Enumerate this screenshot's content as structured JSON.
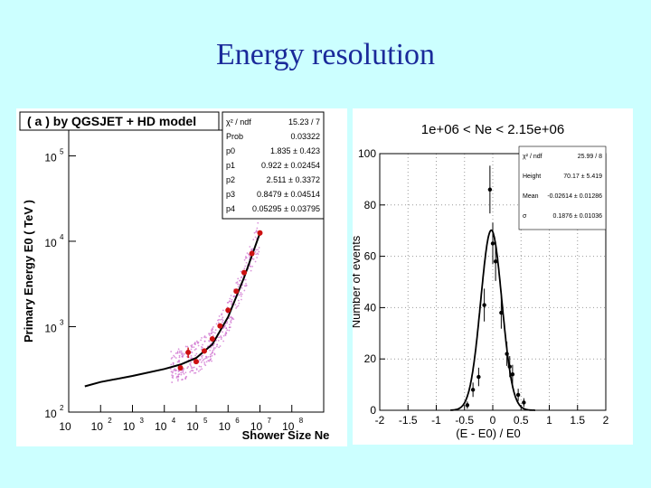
{
  "slide": {
    "title": "Energy resolution"
  },
  "chart_data": [
    {
      "type": "scatter",
      "title": "( a ) by QGSJET + HD model",
      "xlabel": "Shower Size Ne",
      "ylabel": "Primary Energy E0  ( TeV )",
      "xscale": "log",
      "yscale": "log",
      "xlim": [
        1,
        100000000
      ],
      "ylim": [
        100,
        200000
      ],
      "xticks": [
        {
          "v": 1,
          "label": "10",
          "exp": ""
        },
        {
          "v": 10,
          "label": "10",
          "exp": "2"
        },
        {
          "v": 100,
          "label": "10",
          "exp": "3"
        },
        {
          "v": 1000,
          "label": "10",
          "exp": "4"
        },
        {
          "v": 10000,
          "label": "10",
          "exp": "5"
        },
        {
          "v": 100000,
          "label": "10",
          "exp": "6"
        },
        {
          "v": 1000000,
          "label": "10",
          "exp": "7"
        },
        {
          "v": 10000000,
          "label": "10",
          "exp": "8"
        }
      ],
      "yticks": [
        {
          "v": 100,
          "label": "10",
          "exp": "2"
        },
        {
          "v": 1000,
          "label": "10",
          "exp": "3"
        },
        {
          "v": 10000,
          "label": "10",
          "exp": "4"
        },
        {
          "v": 100000,
          "label": "10",
          "exp": "5"
        }
      ],
      "series": [
        {
          "kind": "points_with_errors",
          "color": "#cc1111",
          "points": [
            {
              "x": 3200,
              "y": 330,
              "yerr_lo": 20,
              "yerr_hi": 20
            },
            {
              "x": 5600,
              "y": 500,
              "yerr_lo": 70,
              "yerr_hi": 70
            },
            {
              "x": 10000,
              "y": 390,
              "yerr_lo": 25,
              "yerr_hi": 25
            },
            {
              "x": 18000,
              "y": 520,
              "yerr_lo": 35,
              "yerr_hi": 35
            },
            {
              "x": 32000,
              "y": 720,
              "yerr_lo": 45,
              "yerr_hi": 45
            },
            {
              "x": 56000,
              "y": 1020,
              "yerr_lo": 60,
              "yerr_hi": 60
            },
            {
              "x": 100000,
              "y": 1560,
              "yerr_lo": 100,
              "yerr_hi": 100
            },
            {
              "x": 180000,
              "y": 2600,
              "yerr_lo": 160,
              "yerr_hi": 160
            },
            {
              "x": 320000,
              "y": 4300,
              "yerr_lo": 250,
              "yerr_hi": 250
            },
            {
              "x": 560000,
              "y": 7200,
              "yerr_lo": 450,
              "yerr_hi": 450
            },
            {
              "x": 1000000,
              "y": 12500,
              "yerr_lo": 900,
              "yerr_hi": 900
            }
          ]
        },
        {
          "kind": "fit_curve",
          "color": "#000000",
          "points": [
            {
              "x": 3.2,
              "y": 200
            },
            {
              "x": 10,
              "y": 225
            },
            {
              "x": 100,
              "y": 265
            },
            {
              "x": 1000,
              "y": 320
            },
            {
              "x": 3200,
              "y": 360
            },
            {
              "x": 10000,
              "y": 430
            },
            {
              "x": 32000,
              "y": 620
            },
            {
              "x": 100000,
              "y": 1300
            },
            {
              "x": 320000,
              "y": 3800
            },
            {
              "x": 1000000,
              "y": 12500
            }
          ]
        }
      ],
      "stats_box": {
        "header": {
          "label": "χ² / ndf",
          "value": "15.23 / 7"
        },
        "rows": [
          {
            "label": "Prob",
            "value": "0.03322"
          },
          {
            "label": "p0",
            "value": "1.835 ± 0.423"
          },
          {
            "label": "p1",
            "value": "0.922 ± 0.02454"
          },
          {
            "label": "p2",
            "value": "2.511 ± 0.3372"
          },
          {
            "label": "p3",
            "value": "0.8479 ± 0.04514"
          },
          {
            "label": "p4",
            "value": "0.05295 ± 0.03795"
          }
        ]
      }
    },
    {
      "type": "scatter",
      "title": "1e+06 < Ne < 2.15e+06",
      "xlabel": "(E - E0) / E0",
      "ylabel": "Number of events",
      "xlim": [
        -2,
        2
      ],
      "ylim": [
        0,
        100
      ],
      "xticks": [
        "-2",
        "-1.5",
        "-1",
        "-0.5",
        "0",
        "0.5",
        "1",
        "1.5",
        "2"
      ],
      "yticks": [
        "0",
        "20",
        "40",
        "60",
        "80",
        "100"
      ],
      "grid": "dotted",
      "series": [
        {
          "kind": "points_with_errors",
          "color": "#000000",
          "points": [
            {
              "x": -0.45,
              "y": 2,
              "err": 1.4
            },
            {
              "x": -0.35,
              "y": 8,
              "err": 2.8
            },
            {
              "x": -0.25,
              "y": 13,
              "err": 3.6
            },
            {
              "x": -0.15,
              "y": 41,
              "err": 6.4
            },
            {
              "x": -0.05,
              "y": 86,
              "err": 9.3
            },
            {
              "x": 0.0,
              "y": 65,
              "err": 8.1
            },
            {
              "x": 0.05,
              "y": 58,
              "err": 7.6
            },
            {
              "x": 0.15,
              "y": 38,
              "err": 6.2
            },
            {
              "x": 0.25,
              "y": 22,
              "err": 4.7
            },
            {
              "x": 0.3,
              "y": 17,
              "err": 4.1
            },
            {
              "x": 0.35,
              "y": 14,
              "err": 3.7
            },
            {
              "x": 0.45,
              "y": 6,
              "err": 2.4
            },
            {
              "x": 0.55,
              "y": 3,
              "err": 1.7
            }
          ]
        },
        {
          "kind": "gaussian_fit",
          "color": "#000000",
          "height": 70.17,
          "mean": -0.02614,
          "sigma": 0.1876
        }
      ],
      "stats_box": {
        "header": {
          "label": "χ² / ndf",
          "value": "25.99 / 8"
        },
        "rows": [
          {
            "label": "Height",
            "value": "70.17 ± 5.419"
          },
          {
            "label": "Mean",
            "value": "-0.02614 ± 0.01286"
          },
          {
            "label": "σ",
            "value": "0.1876 ± 0.01036"
          }
        ]
      }
    }
  ]
}
